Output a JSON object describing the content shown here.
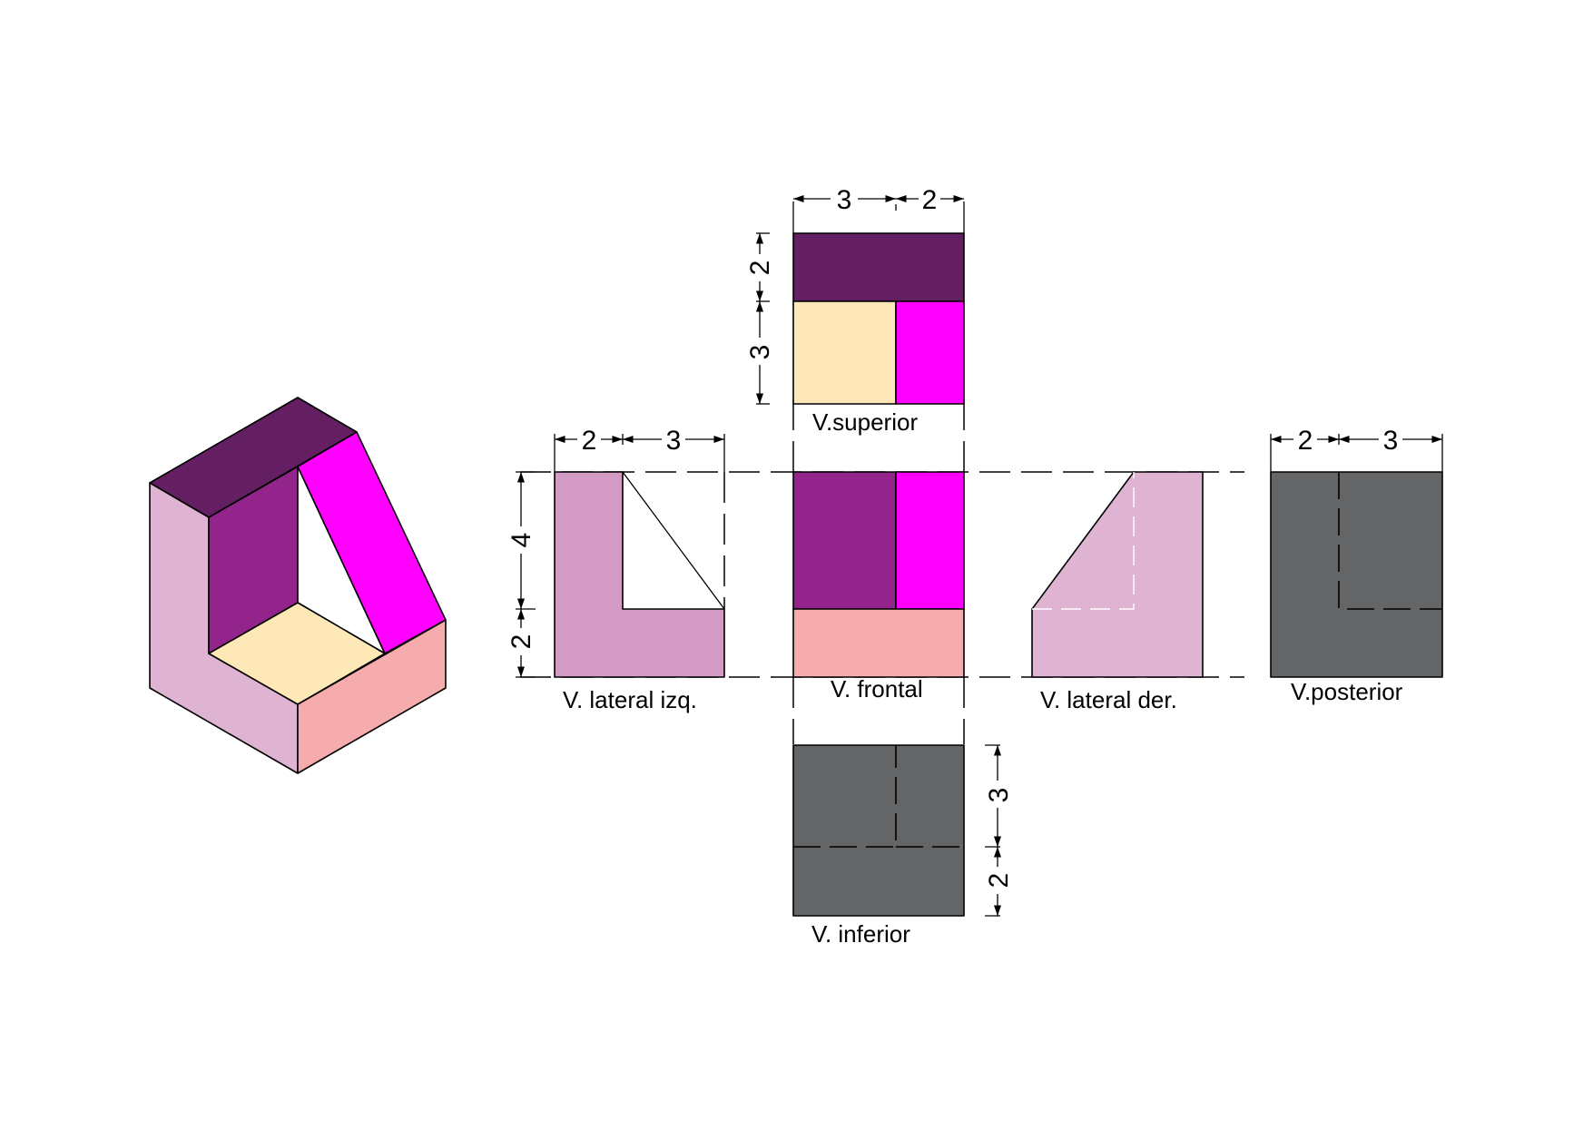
{
  "views": {
    "superior": "V.superior",
    "lateral_izq": "V. lateral izq.",
    "frontal": "V. frontal",
    "lateral_der": "V. lateral der.",
    "posterior": "V.posterior",
    "inferior": "V. inferior"
  },
  "dimensions": {
    "top_width_a": "3",
    "top_width_b": "2",
    "top_depth_a": "2",
    "top_depth_b": "3",
    "left_width_a": "2",
    "left_width_b": "3",
    "height_a": "4",
    "height_b": "2",
    "back_width_a": "2",
    "back_width_b": "3",
    "bottom_depth_a": "3",
    "bottom_depth_b": "2"
  },
  "colors": {
    "dark_purple": "#641F62",
    "purple": "#92248C",
    "magenta": "#FF00FF",
    "cream": "#FFE8B8",
    "salmon": "#F6ABAC",
    "light_pink": "#DFB3D2",
    "mauve": "#D39AC3",
    "gray": "#646567",
    "white": "#FFFFFF"
  }
}
